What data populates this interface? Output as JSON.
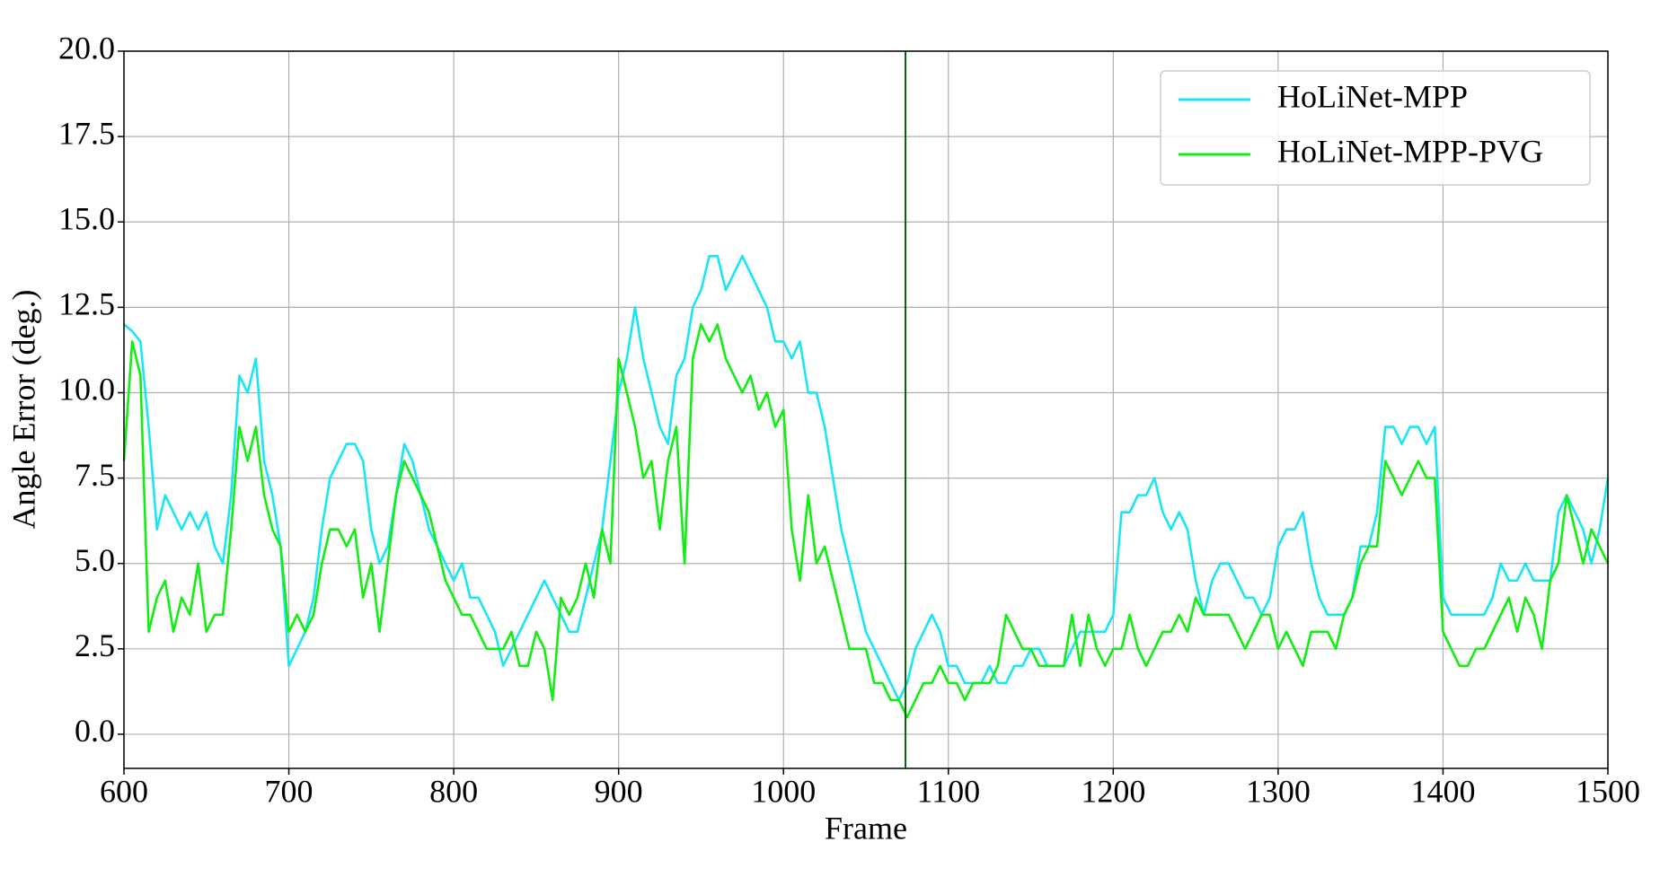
{
  "chart_data": {
    "type": "line",
    "xlabel": "Frame",
    "ylabel": "Angle Error (deg.)",
    "x": [
      600,
      605,
      610,
      615,
      620,
      625,
      630,
      635,
      640,
      645,
      650,
      655,
      660,
      665,
      670,
      675,
      680,
      685,
      690,
      695,
      700,
      705,
      710,
      715,
      720,
      725,
      730,
      735,
      740,
      745,
      750,
      755,
      760,
      765,
      770,
      775,
      780,
      785,
      790,
      795,
      800,
      805,
      810,
      815,
      820,
      825,
      830,
      835,
      840,
      845,
      850,
      855,
      860,
      865,
      870,
      875,
      880,
      885,
      890,
      895,
      900,
      905,
      910,
      915,
      920,
      925,
      930,
      935,
      940,
      945,
      950,
      955,
      960,
      965,
      970,
      975,
      980,
      985,
      990,
      995,
      1000,
      1005,
      1010,
      1015,
      1020,
      1025,
      1030,
      1035,
      1040,
      1045,
      1050,
      1055,
      1060,
      1065,
      1070,
      1075,
      1080,
      1085,
      1090,
      1095,
      1100,
      1105,
      1110,
      1115,
      1120,
      1125,
      1130,
      1135,
      1140,
      1145,
      1150,
      1155,
      1160,
      1165,
      1170,
      1175,
      1180,
      1185,
      1190,
      1195,
      1200,
      1205,
      1210,
      1215,
      1220,
      1225,
      1230,
      1235,
      1240,
      1245,
      1250,
      1255,
      1260,
      1265,
      1270,
      1275,
      1280,
      1285,
      1290,
      1295,
      1300,
      1305,
      1310,
      1315,
      1320,
      1325,
      1330,
      1335,
      1340,
      1345,
      1350,
      1355,
      1360,
      1365,
      1370,
      1375,
      1380,
      1385,
      1390,
      1395,
      1400,
      1405,
      1410,
      1415,
      1420,
      1425,
      1430,
      1435,
      1440,
      1445,
      1450,
      1455,
      1460,
      1465,
      1470,
      1475,
      1480,
      1485,
      1490,
      1495,
      1500
    ],
    "series": [
      {
        "name": "HoLiNet-MPP",
        "color": "#19e6f5",
        "values": [
          12,
          11.8,
          11.5,
          9,
          6,
          7,
          6.5,
          6,
          6.5,
          6,
          6.5,
          5.5,
          5,
          7,
          10.5,
          10,
          11,
          8,
          7,
          5.5,
          2,
          2.5,
          3,
          4,
          6,
          7.5,
          8,
          8.5,
          8.5,
          8,
          6,
          5,
          5.5,
          7,
          8.5,
          8,
          7,
          6,
          5.5,
          5,
          4.5,
          5,
          4,
          4,
          3.5,
          3,
          2,
          2.5,
          3,
          3.5,
          4,
          4.5,
          4,
          3.5,
          3,
          3,
          4,
          5,
          6,
          8,
          10,
          11,
          12.5,
          11,
          10,
          9,
          8.5,
          10.5,
          11,
          12.5,
          13,
          14,
          14,
          13,
          13.5,
          14,
          13.5,
          13,
          12.5,
          11.5,
          11.5,
          11,
          11.5,
          10,
          10,
          9,
          7.5,
          6,
          5,
          4,
          3,
          2.5,
          2,
          1.5,
          1,
          1.5,
          2.5,
          3,
          3.5,
          3,
          2,
          2,
          1.5,
          1.5,
          1.5,
          2,
          1.5,
          1.5,
          2,
          2,
          2.5,
          2.5,
          2,
          2,
          2,
          2.5,
          3,
          3,
          3,
          3,
          3.5,
          6.5,
          6.5,
          7,
          7,
          7.5,
          6.5,
          6,
          6.5,
          6,
          4.5,
          3.5,
          4.5,
          5,
          5,
          4.5,
          4,
          4,
          3.5,
          4,
          5.5,
          6,
          6,
          6.5,
          5,
          4,
          3.5,
          3.5,
          3.5,
          4,
          5.5,
          5.5,
          6.5,
          9,
          9,
          8.5,
          9,
          9,
          8.5,
          9,
          4,
          3.5,
          3.5,
          3.5,
          3.5,
          3.5,
          4,
          5,
          4.5,
          4.5,
          5,
          4.5,
          4.5,
          4.5,
          6.5,
          7,
          6.5,
          6,
          5,
          6,
          7.5
        ]
      },
      {
        "name": "HoLiNet-MPP-PVG",
        "color": "#11ee11",
        "values": [
          8,
          11.5,
          10.5,
          3,
          4,
          4.5,
          3,
          4,
          3.5,
          5,
          3,
          3.5,
          3.5,
          6,
          9,
          8,
          9,
          7,
          6,
          5.5,
          3,
          3.5,
          3,
          3.5,
          5,
          6,
          6,
          5.5,
          6,
          4,
          5,
          3,
          5,
          7,
          8,
          7.5,
          7,
          6.5,
          5.5,
          4.5,
          4,
          3.5,
          3.5,
          3,
          2.5,
          2.5,
          2.5,
          3,
          2,
          2,
          3,
          2.5,
          1,
          4,
          3.5,
          4,
          5,
          4,
          6,
          5,
          11,
          10,
          9,
          7.5,
          8,
          6,
          8,
          9,
          5,
          11,
          12,
          11.5,
          12,
          11,
          10.5,
          10,
          10.5,
          9.5,
          10,
          9,
          9.5,
          6,
          4.5,
          7,
          5,
          5.5,
          4.5,
          3.5,
          2.5,
          2.5,
          2.5,
          1.5,
          1.5,
          1,
          1,
          0.5,
          1,
          1.5,
          1.5,
          2,
          1.5,
          1.5,
          1,
          1.5,
          1.5,
          1.5,
          2,
          3.5,
          3,
          2.5,
          2.5,
          2,
          2,
          2,
          2,
          3.5,
          2,
          3.5,
          2.5,
          2,
          2.5,
          2.5,
          3.5,
          2.5,
          2,
          2.5,
          3,
          3,
          3.5,
          3,
          4,
          3.5,
          3.5,
          3.5,
          3.5,
          3,
          2.5,
          3,
          3.5,
          3.5,
          2.5,
          3,
          2.5,
          2,
          3,
          3,
          3,
          2.5,
          3.5,
          4,
          5,
          5.5,
          5.5,
          8,
          7.5,
          7,
          7.5,
          8,
          7.5,
          7.5,
          3,
          2.5,
          2,
          2,
          2.5,
          2.5,
          3,
          3.5,
          4,
          3,
          4,
          3.5,
          2.5,
          4.5,
          5,
          7,
          6,
          5,
          6,
          5.5,
          5
        ]
      }
    ],
    "vline": {
      "x": 1074,
      "color": "#006400"
    },
    "xlim": [
      600,
      1500
    ],
    "xticks": [
      600,
      700,
      800,
      900,
      1000,
      1100,
      1200,
      1300,
      1400,
      1500
    ],
    "ylim": [
      -1,
      20
    ],
    "yticks": [
      {
        "value": 0,
        "label": "0.0"
      },
      2.5,
      {
        "value": 5,
        "label": "5.0"
      },
      7.5,
      {
        "value": 10,
        "label": "10.0"
      },
      12.5,
      {
        "value": 15,
        "label": "15.0"
      },
      17.5,
      {
        "value": 20,
        "label": "20.0"
      }
    ],
    "grid": true,
    "legend": "upper right"
  }
}
